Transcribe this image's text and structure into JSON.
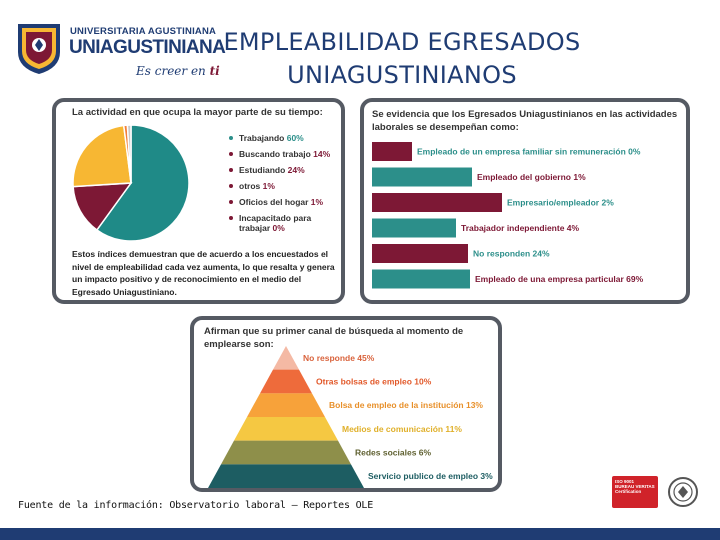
{
  "header": {
    "logo_small": "UNIVERSITARIA AGUSTINIANA",
    "logo_big": "UNIAGUSTINIANA",
    "slogan": "Es creer en",
    "slogan_ti": "ti",
    "title_line1": "EMPLEABILIDAD EGRESADOS",
    "title_line2": "UNIAGUSTINIANOS"
  },
  "colors": {
    "brand_navy": "#1f3c73",
    "brand_maroon": "#7d1835",
    "teal": "#2c8f8a",
    "panel_border": "#555a63"
  },
  "panel_activity": {
    "title": "La actividad en que ocupa la mayor parte de su tiempo:",
    "note": "Estos índices demuestran que de acuerdo a los encuestados el nivel de empleabilidad cada vez aumenta, lo que resalta y genera un impacto positivo y de reconocimiento en el medio del Egresado Uniagustiniano."
  },
  "panel_evidence": {
    "title": "Se evidencia que los Egresados Uniagustinianos en las actividades laborales se desempeñan como:"
  },
  "panel_channel": {
    "title": "Afirman que su primer canal de búsqueda al momento de emplearse son:"
  },
  "chart_data": [
    {
      "type": "pie",
      "title": "La actividad en que ocupa la mayor parte de su tiempo:",
      "slices": [
        {
          "label": "Trabajando",
          "value_text": "60%",
          "value": 60,
          "color": "#1f8a87"
        },
        {
          "label": "Buscando trabajo",
          "value_text": "14%",
          "value": 14,
          "color": "#7d1835"
        },
        {
          "label": "Estudiando",
          "value_text": "24%",
          "value": 24,
          "color": "#f7b733"
        },
        {
          "label": "otros",
          "value_text": "1%",
          "value": 1,
          "color": "#f2803a"
        },
        {
          "label": "Oficios del hogar",
          "value_text": "1%",
          "value": 1,
          "color": "#c9c9c9"
        },
        {
          "label": "Incapacitado para trabajar",
          "value_text": "0%",
          "value": 0,
          "color": "#d7263d"
        }
      ]
    },
    {
      "type": "bar",
      "orientation": "horizontal",
      "title": "Se evidencia que los Egresados Uniagustinianos en las actividades laborales se desempeñan como:",
      "bars": [
        {
          "label": "Empleado de un empresa familiar sin remuneración",
          "value_text": "0%",
          "value": 0,
          "color": "#7d1835",
          "text_color": "#2c8f8a"
        },
        {
          "label": "Empleado del gobierno",
          "value_text": "1%",
          "value": 1,
          "color": "#2c8f8a",
          "text_color": "#7d1835"
        },
        {
          "label": "Empresario/empleador",
          "value_text": "2%",
          "value": 2,
          "color": "#7d1835",
          "text_color": "#2c8f8a"
        },
        {
          "label": "Trabajador independiente",
          "value_text": "4%",
          "value": 4,
          "color": "#2c8f8a",
          "text_color": "#7d1835"
        },
        {
          "label": "No responden",
          "value_text": "24%",
          "value": 24,
          "color": "#7d1835",
          "text_color": "#2c8f8a"
        },
        {
          "label": "Empleado de una empresa particular",
          "value_text": "69%",
          "value": 69,
          "color": "#2c8f8a",
          "text_color": "#7d1835"
        }
      ]
    },
    {
      "type": "pyramid",
      "title": "Afirman que su primer canal de búsqueda al momento de emplearse son:",
      "levels": [
        {
          "label": "No responde",
          "value_text": "45%",
          "value": 45,
          "color": "#f4b9a4",
          "text_color": "#d9623b"
        },
        {
          "label": "Otras bolsas de empleo",
          "value_text": "10%",
          "value": 10,
          "color": "#ee6b3b",
          "text_color": "#e2592a"
        },
        {
          "label": "Bolsa de empleo de la institución",
          "value_text": "13%",
          "value": 13,
          "color": "#f7a23a",
          "text_color": "#e8902a"
        },
        {
          "label": "Medios de comunicación",
          "value_text": "11%",
          "value": 11,
          "color": "#f5c842",
          "text_color": "#e0b02a"
        },
        {
          "label": "Redes sociales",
          "value_text": "6%",
          "value": 6,
          "color": "#8e8f4a",
          "text_color": "#5f6030"
        },
        {
          "label": "Servicio publico de empleo",
          "value_text": "3%",
          "value": 3,
          "color": "#1d5d62",
          "text_color": "#1d5d62"
        }
      ]
    }
  ],
  "source": "Fuente de la información: Observatorio laboral – Reportes OLE",
  "certification": {
    "line1": "ISO 9001",
    "line2": "BUREAU VERITAS",
    "line3": "Certification",
    "seal_icon": "bureau-veritas-seal-icon"
  }
}
